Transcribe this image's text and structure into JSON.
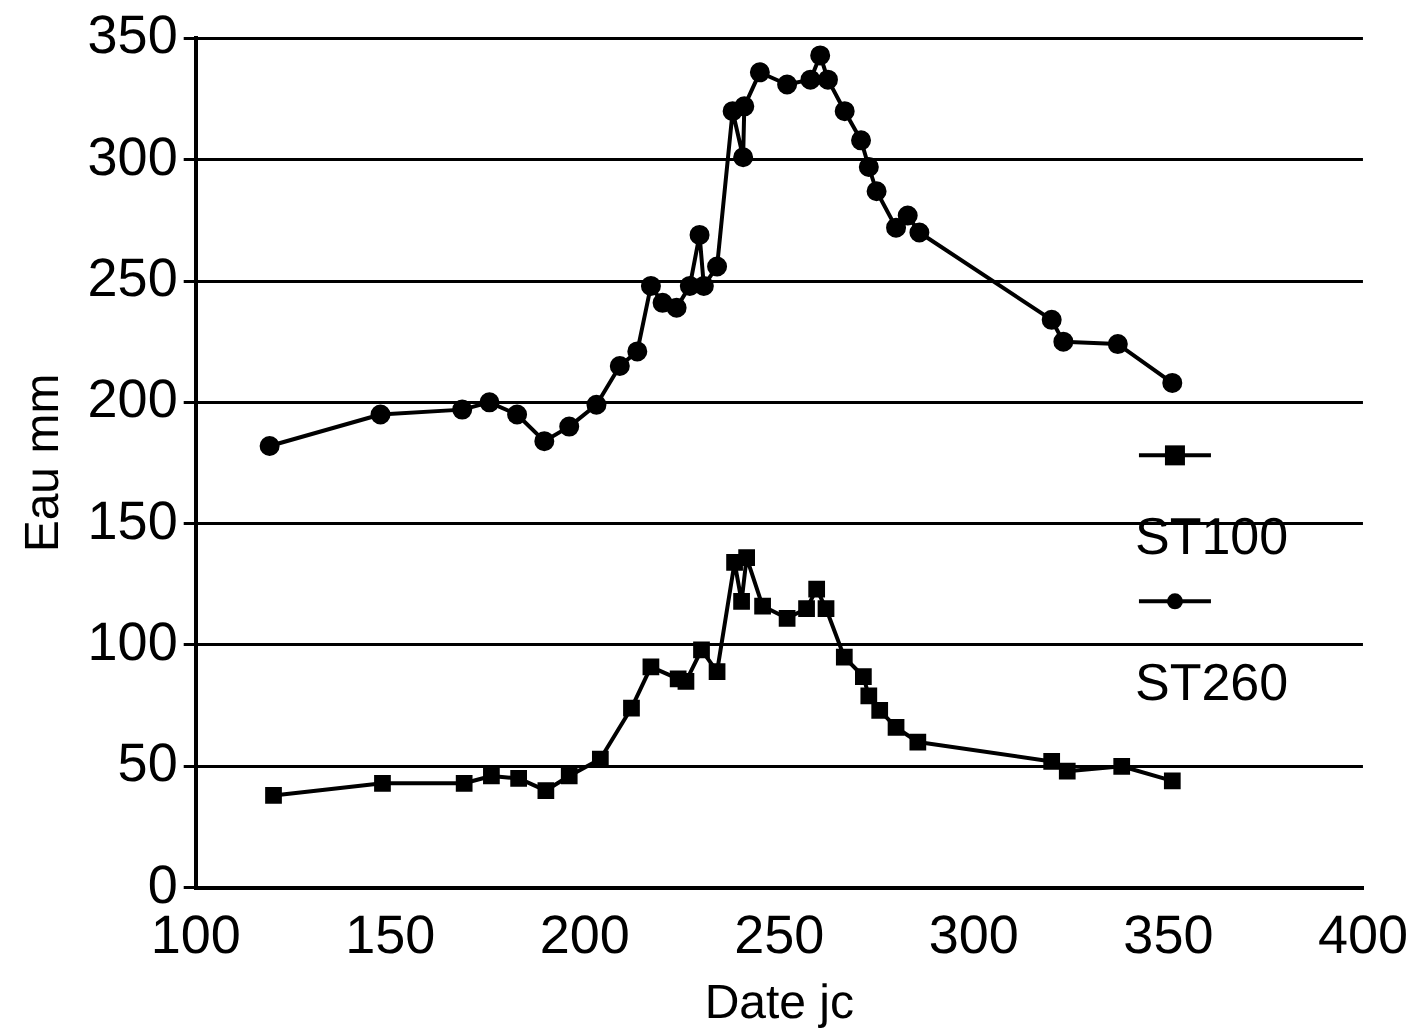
{
  "chart_data": {
    "type": "line",
    "xlabel": "Date jc",
    "ylabel": "Eau mm",
    "xlim": [
      100,
      400
    ],
    "xticks": [
      100,
      150,
      200,
      250,
      300,
      350,
      400
    ],
    "ylim": [
      0,
      350
    ],
    "yticks": [
      0,
      50,
      100,
      150,
      200,
      250,
      300,
      350
    ],
    "grid": "y",
    "legend": "right",
    "series": [
      {
        "name": "ST100",
        "color": "#000000",
        "marker": "square",
        "x": [
          120,
          148,
          169,
          176,
          183,
          190,
          196,
          204,
          212,
          217,
          224,
          226,
          230,
          234,
          238.5,
          240.3,
          241.6,
          245.7,
          252,
          257,
          259.6,
          262,
          266.7,
          271.6,
          273,
          275.8,
          280,
          285.6,
          320,
          324,
          338,
          351
        ],
        "values": [
          38,
          43,
          43,
          46,
          45,
          40,
          46,
          53,
          74,
          91,
          86,
          85,
          98,
          89,
          134,
          118,
          136,
          116,
          111,
          115,
          123,
          115,
          95,
          87,
          79,
          73,
          66,
          60,
          52,
          48,
          50,
          44
        ]
      },
      {
        "name": "ST260",
        "color": "#000000",
        "marker": "circle",
        "x": [
          119,
          147.5,
          168.5,
          175.5,
          182.6,
          189.6,
          196,
          203,
          209,
          213.5,
          217,
          220,
          223.6,
          227,
          229.5,
          230.6,
          234,
          238,
          240.7,
          241,
          245,
          252,
          258,
          260.5,
          262.5,
          266.8,
          271,
          273,
          275,
          280,
          283,
          286,
          320,
          323,
          337,
          351
        ],
        "values": [
          182,
          195,
          197,
          200,
          195,
          184,
          190,
          199,
          215,
          221,
          248,
          241,
          239,
          248,
          269,
          248,
          256,
          320,
          301,
          322,
          336,
          331,
          333,
          343,
          333,
          320,
          308,
          297,
          287,
          272,
          277,
          270,
          234,
          225,
          224,
          208
        ]
      }
    ]
  }
}
